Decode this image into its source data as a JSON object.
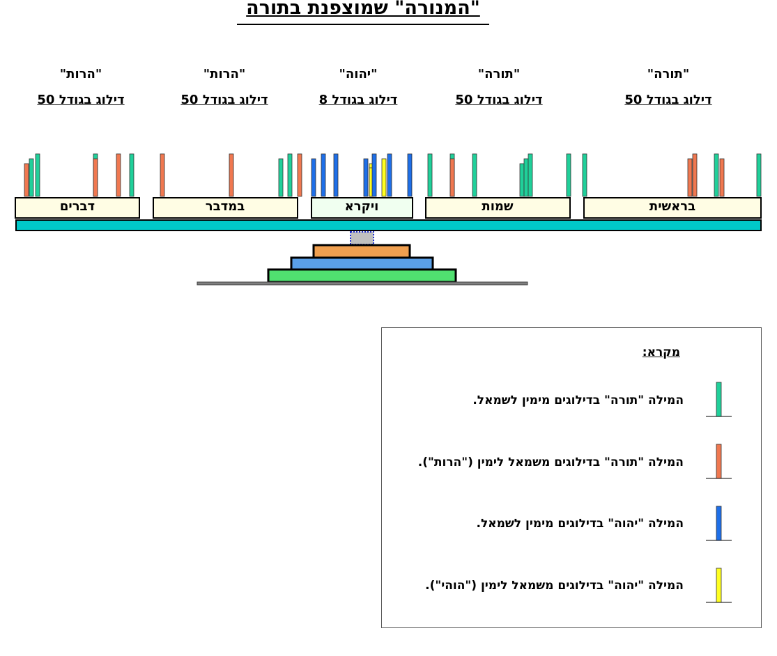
{
  "title": "\"המנורה\" שמוצפנת בתורה",
  "columns": [
    {
      "word": "\"תורה\"",
      "skip": "דילוג בגודל 50"
    },
    {
      "word": "\"תורה\"",
      "skip": "דילוג בגודל 50"
    },
    {
      "word": "\"יהוה\"",
      "skip": "דילוג בגודל 8"
    },
    {
      "word": "\"הרות\"",
      "skip": "דילוג בגודל 50"
    },
    {
      "word": "\"הרות\"",
      "skip": "דילוג בגודל 50"
    }
  ],
  "books": [
    "בראשית",
    "שמות",
    "ויקרא",
    "במדבר",
    "דברים"
  ],
  "legend": {
    "title": "מקרא:",
    "items": [
      "המילה \"תורה\" בדילוגים מימין לשמאל.",
      "המילה \"תורה\" בדילוגים משמאל לימין (\"הרות\").",
      "המילה \"יהוה\" בדילוגים מימין לשמאל.",
      "המילה \"יהוה\" בדילוגים משמאל לימין (\"הוהי\")."
    ]
  }
}
